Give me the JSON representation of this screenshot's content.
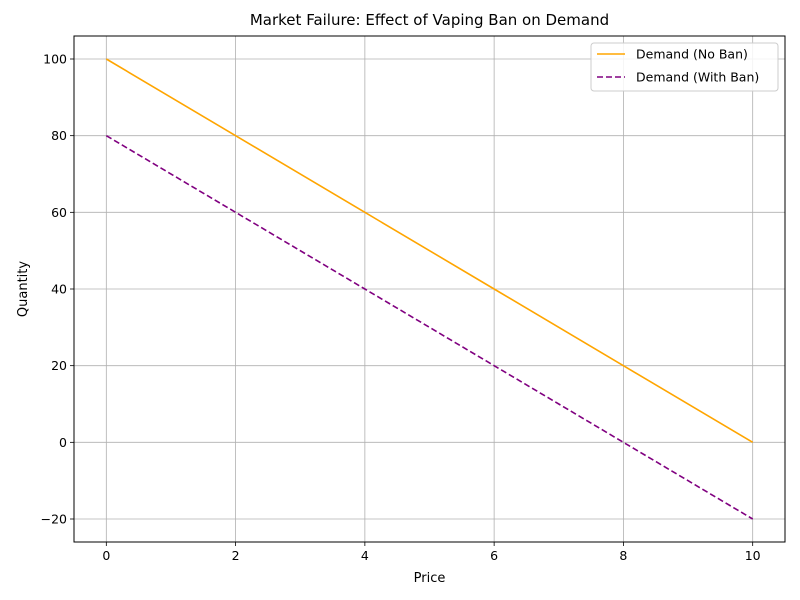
{
  "chart_data": {
    "type": "line",
    "title": "Market Failure: Effect of Vaping Ban on Demand",
    "xlabel": "Price",
    "ylabel": "Quantity",
    "xlim": [
      -0.5,
      10.5
    ],
    "ylim": [
      -26,
      106
    ],
    "xticks": [
      0,
      2,
      4,
      6,
      8,
      10
    ],
    "yticks": [
      -20,
      0,
      20,
      40,
      60,
      80,
      100
    ],
    "xtick_labels": [
      "0",
      "2",
      "4",
      "6",
      "8",
      "10"
    ],
    "ytick_labels": [
      "−20",
      "0",
      "20",
      "40",
      "60",
      "80",
      "100"
    ],
    "grid": true,
    "legend_position": "top-right",
    "x": [
      0,
      2,
      4,
      6,
      8,
      10
    ],
    "series": [
      {
        "name": "Demand (No Ban)",
        "values": [
          100,
          80,
          60,
          40,
          20,
          0
        ],
        "color": "#ffa500",
        "style": "solid"
      },
      {
        "name": "Demand (With Ban)",
        "values": [
          80,
          60,
          40,
          20,
          0,
          -20
        ],
        "color": "#800080",
        "style": "dashed"
      }
    ]
  }
}
